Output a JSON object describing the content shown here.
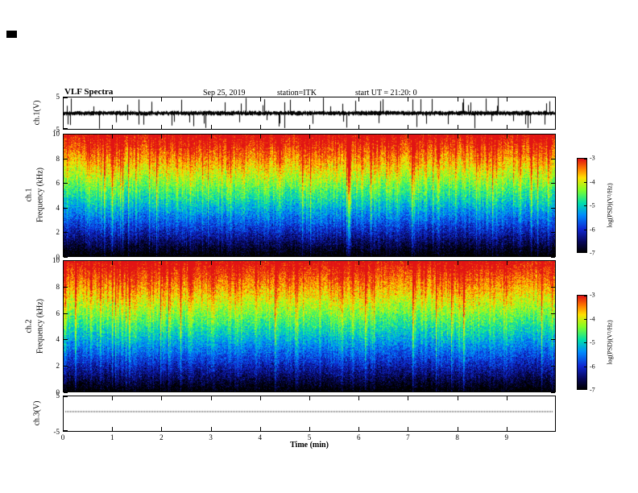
{
  "header": {
    "title": "VLF Spectra",
    "date": "Sep 25, 2019",
    "station": "station=ITK",
    "start_ut": "start UT =  21:20: 0"
  },
  "axes": {
    "x": {
      "label": "Time (min)",
      "ticks": [
        0,
        1,
        2,
        3,
        4,
        5,
        6,
        7,
        8,
        9
      ],
      "range": [
        0,
        10
      ]
    },
    "ch1_wave": {
      "label": "ch.1(V)",
      "ticks": [
        5,
        -5
      ],
      "range": [
        -5,
        5
      ]
    },
    "spec1": {
      "channel": "ch.1",
      "label": "Frequency (kHz)",
      "ticks": [
        0,
        2,
        4,
        6,
        8,
        10
      ],
      "range": [
        0,
        10
      ]
    },
    "spec2": {
      "channel": "ch.2",
      "label": "Frequency (kHz)",
      "ticks": [
        0,
        2,
        4,
        6,
        8,
        10
      ],
      "range": [
        0,
        10
      ]
    },
    "ch3_wave": {
      "label": "ch.3(V)",
      "ticks": [
        5,
        -5
      ],
      "range": [
        -5,
        5
      ]
    },
    "colorbar": {
      "label": "log(PSD)(V²/Hz)",
      "ticks": [
        -3,
        -4,
        -5,
        -6,
        -7
      ],
      "range": [
        -7,
        -3
      ]
    }
  },
  "colors": {
    "background": "#ffffff",
    "ink": "#000000",
    "colormap_stops": [
      "#000000",
      "#08085e",
      "#1028d2",
      "#008cff",
      "#00e1aa",
      "#82ff28",
      "#ffe100",
      "#ff7800",
      "#e11414"
    ]
  },
  "chart_data": [
    {
      "type": "line",
      "name": "ch1-waveform",
      "title": "ch.1(V)",
      "x_range": [
        0,
        10
      ],
      "x_unit": "min",
      "y_range": [
        -5,
        5
      ],
      "y_unit": "V",
      "description": "Broadband VLF receiver time series: dense noise of roughly ±1 V about 0 V with frequent impulsive sferic spikes reaching ±5 V throughout the ~10-minute record."
    },
    {
      "type": "heatmap",
      "name": "ch1-spectrogram",
      "channel": "ch.1",
      "x_range": [
        0,
        10
      ],
      "x_unit": "min",
      "y_range": [
        0,
        10
      ],
      "y_label": "Frequency (kHz)",
      "value_label": "log(PSD)(V²/Hz)",
      "value_range": [
        -7,
        -3
      ],
      "colormap": "jet-like (black→blue→cyan→green→yellow→red)",
      "description": "Low PSD (≈−7, black/dark blue) below ~4 kHz with dense vertical sferic streaks; PSD increases with frequency through cyan/green (≈−5) near 5–7 kHz to yellow/orange (≈−4) above 8 kHz; numerous narrow red vertical stripes (≈−3) from impulsive events span the full band."
    },
    {
      "type": "heatmap",
      "name": "ch2-spectrogram",
      "channel": "ch.2",
      "x_range": [
        0,
        10
      ],
      "x_unit": "min",
      "y_range": [
        0,
        10
      ],
      "y_label": "Frequency (kHz)",
      "value_label": "log(PSD)(V²/Hz)",
      "value_range": [
        -7,
        -3
      ],
      "colormap": "jet-like (black→blue→cyan→green→yellow→red)",
      "description": "Same structure as ch.1: dark low-PSD region below ~4 kHz with vertical streaks, green/yellow high band above ~5 kHz, and red impulsive vertical stripes across all frequencies."
    },
    {
      "type": "line",
      "name": "ch3-waveform",
      "title": "ch.3(V)",
      "x_range": [
        0,
        10
      ],
      "x_unit": "min",
      "y_range": [
        -5,
        5
      ],
      "y_unit": "V",
      "description": "Nearly constant flat dotted trace at ≈ +0.7 V for the entire record (inactive channel)."
    }
  ]
}
